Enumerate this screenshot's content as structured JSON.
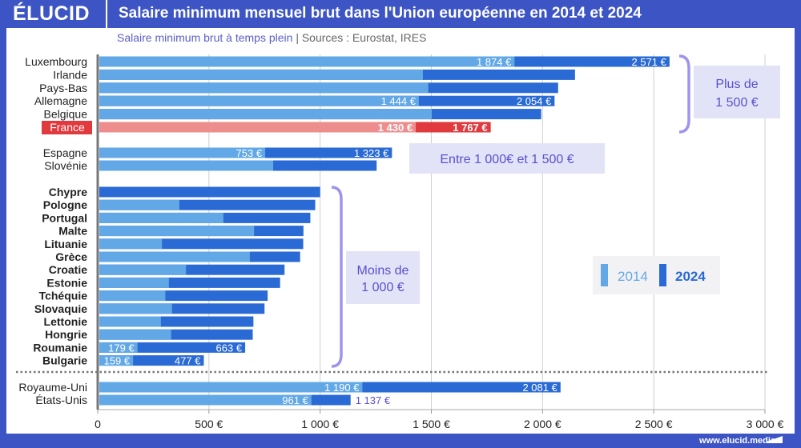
{
  "header": {
    "logo": "ÉLUCID",
    "title": "Salaire minimum mensuel brut dans l'Union européenne en 2014 et 2024"
  },
  "subtitle": {
    "main": "Salaire minimum brut à temps plein",
    "separator": "|",
    "sources": "Sources : Eurostat, IRES"
  },
  "footer": {
    "url": "www.elucid.media"
  },
  "colors": {
    "y2014": "#62a8e6",
    "y2024": "#2a6ad4",
    "france2014": "#ee8d8d",
    "france2024": "#e0393e",
    "group_box": "#e2e3f6",
    "group_text": "#5a4fd0",
    "bracket": "#9d95ec"
  },
  "groups": [
    {
      "label_line1": "Plus de",
      "label_line2": "1 500 €"
    },
    {
      "label_line1": "Entre 1 000€ et 1 500 €",
      "label_line2": ""
    },
    {
      "label_line1": "Moins de",
      "label_line2": "1 000 €"
    }
  ],
  "chart_data": {
    "type": "bar",
    "orientation": "horizontal",
    "title": "Salaire minimum mensuel brut dans l'Union européenne en 2014 et 2024",
    "xlim": [
      0,
      3000
    ],
    "x_ticks": [
      "0",
      "500 €",
      "1 000 €",
      "1 500 €",
      "2 000 €",
      "2 500 €",
      "3 000 €"
    ],
    "grid": true,
    "legend": {
      "position": "right",
      "entries": [
        "2014",
        "2024"
      ]
    },
    "categories": [
      "Luxembourg",
      "Irlande",
      "Pays-Bas",
      "Allemagne",
      "Belgique",
      "France",
      "Espagne",
      "Slovénie",
      "Chypre",
      "Pologne",
      "Portugal",
      "Malte",
      "Lituanie",
      "Grèce",
      "Croatie",
      "Estonie",
      "Tchéquie",
      "Slovaquie",
      "Lettonie",
      "Hongrie",
      "Roumanie",
      "Bulgarie",
      "Royaume-Uni",
      "États-Unis"
    ],
    "series": [
      {
        "name": "2014",
        "values": [
          1874,
          1462,
          1486,
          1444,
          1502,
          1430,
          753,
          789,
          null,
          367,
          565,
          703,
          289,
          684,
          397,
          320,
          304,
          334,
          284,
          330,
          179,
          159,
          1190,
          961
        ],
        "labels": [
          "1 874 €",
          "",
          "",
          "1 444 €",
          "",
          "1 430 €",
          "753 €",
          "",
          "",
          "",
          "",
          "",
          "",
          "",
          "",
          "",
          "",
          "",
          "",
          "",
          "179 €",
          "159 €",
          "1 190 €",
          "961 €"
        ]
      },
      {
        "name": "2024",
        "values": [
          2571,
          2146,
          2070,
          2054,
          1994,
          1767,
          1323,
          1254,
          1000,
          978,
          956,
          925,
          924,
          910,
          840,
          820,
          764,
          750,
          700,
          697,
          663,
          477,
          2081,
          1137
        ],
        "labels": [
          "2 571 €",
          "",
          "",
          "2 054 €",
          "",
          "1 767 €",
          "1 323 €",
          "",
          "",
          "",
          "",
          "",
          "",
          "",
          "",
          "",
          "",
          "",
          "",
          "",
          "663 €",
          "477 €",
          "2 081 €",
          "1 137 €"
        ]
      }
    ]
  }
}
